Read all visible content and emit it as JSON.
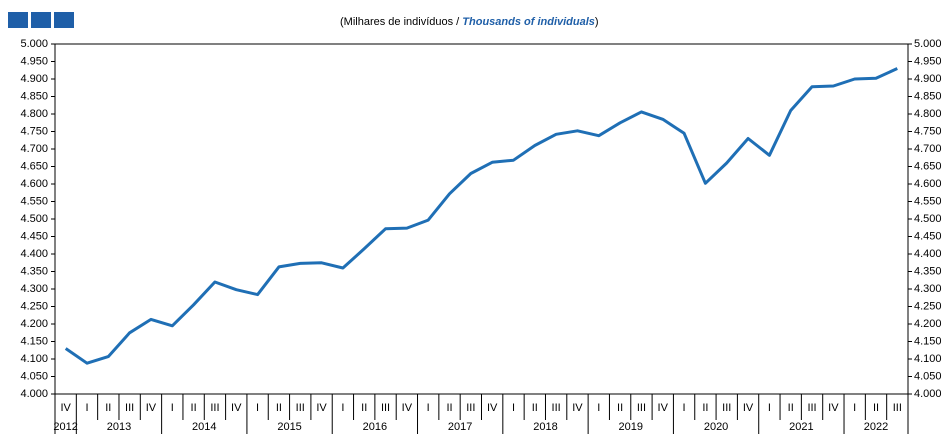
{
  "chart_data": {
    "type": "line",
    "subtitle": {
      "pt": "(Milhares de indivíduos /",
      "en": "Thousands of individuals",
      "close": ")"
    },
    "groups": [
      {
        "label": "2012",
        "categories": [
          "IV"
        ]
      },
      {
        "label": "2013",
        "categories": [
          "I",
          "II",
          "III",
          "IV"
        ]
      },
      {
        "label": "2014",
        "categories": [
          "I",
          "II",
          "III",
          "IV"
        ]
      },
      {
        "label": "2015",
        "categories": [
          "I",
          "II",
          "III",
          "IV"
        ]
      },
      {
        "label": "2016",
        "categories": [
          "I",
          "II",
          "III",
          "IV"
        ]
      },
      {
        "label": "2017",
        "categories": [
          "I",
          "II",
          "III",
          "IV"
        ]
      },
      {
        "label": "2018",
        "categories": [
          "I",
          "II",
          "III",
          "IV"
        ]
      },
      {
        "label": "2019",
        "categories": [
          "I",
          "II",
          "III",
          "IV"
        ]
      },
      {
        "label": "2020",
        "categories": [
          "I",
          "II",
          "III",
          "IV"
        ]
      },
      {
        "label": "2021",
        "categories": [
          "I",
          "II",
          "III",
          "IV"
        ]
      },
      {
        "label": "2022",
        "categories": [
          "I",
          "II",
          "III"
        ]
      }
    ],
    "series": [
      {
        "color": "#1f6fb5",
        "values": [
          4130,
          4088,
          4107,
          4175,
          4213,
          4195,
          4255,
          4320,
          4298,
          4284,
          4363,
          4373,
          4375,
          4360,
          4415,
          4472,
          4474,
          4497,
          4572,
          4630,
          4662,
          4668,
          4710,
          4742,
          4752,
          4738,
          4775,
          4806,
          4785,
          4745,
          4602,
          4660,
          4730,
          4682,
          4810,
          4878,
          4880,
          4900,
          4902,
          4930
        ]
      }
    ],
    "ylim": [
      4000,
      5000
    ],
    "yticks": [
      {
        "value": 4000,
        "label": "4.000"
      },
      {
        "value": 4050,
        "label": "4.050"
      },
      {
        "value": 4100,
        "label": "4.100"
      },
      {
        "value": 4150,
        "label": "4.150"
      },
      {
        "value": 4200,
        "label": "4.200"
      },
      {
        "value": 4250,
        "label": "4.250"
      },
      {
        "value": 4300,
        "label": "4.300"
      },
      {
        "value": 4350,
        "label": "4.350"
      },
      {
        "value": 4400,
        "label": "4.400"
      },
      {
        "value": 4450,
        "label": "4.450"
      },
      {
        "value": 4500,
        "label": "4.500"
      },
      {
        "value": 4550,
        "label": "4.550"
      },
      {
        "value": 4600,
        "label": "4.600"
      },
      {
        "value": 4650,
        "label": "4.650"
      },
      {
        "value": 4700,
        "label": "4.700"
      },
      {
        "value": 4750,
        "label": "4.750"
      },
      {
        "value": 4800,
        "label": "4.800"
      },
      {
        "value": 4850,
        "label": "4.850"
      },
      {
        "value": 4900,
        "label": "4.900"
      },
      {
        "value": 4950,
        "label": "4.950"
      },
      {
        "value": 5000,
        "label": "5.000"
      }
    ]
  }
}
